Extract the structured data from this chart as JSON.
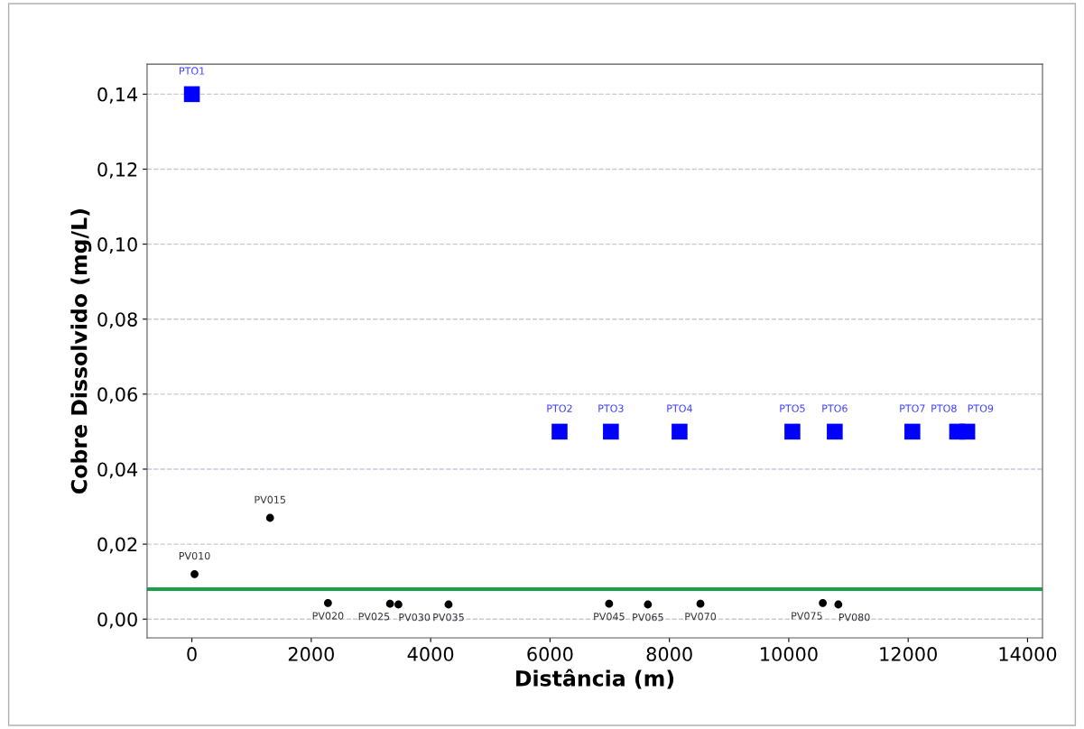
{
  "chart_data": {
    "type": "scatter",
    "xlabel": "Distância (m)",
    "ylabel": "Cobre Dissolvido (mg/L)",
    "xlim": [
      -750,
      14250
    ],
    "xticks": [
      0,
      2000,
      4000,
      6000,
      8000,
      10000,
      12000,
      14000
    ],
    "ylim": [
      -0.005,
      0.148
    ],
    "yticks": [
      {
        "value": 0,
        "label": "0,00"
      },
      {
        "value": 0.02,
        "label": "0,02"
      },
      {
        "value": 0.04,
        "label": "0,04"
      },
      {
        "value": 0.06,
        "label": "0,06"
      },
      {
        "value": 0.08,
        "label": "0,08"
      },
      {
        "value": 0.1,
        "label": "0,10"
      },
      {
        "value": 0.12,
        "label": "0,12"
      },
      {
        "value": 0.14,
        "label": "0,14"
      }
    ],
    "grid": "y",
    "series": [
      {
        "color": "#0000ff",
        "marker": "square",
        "x": [
          0,
          6160,
          7020,
          8170,
          10060,
          10770,
          12070,
          12820,
          12990
        ],
        "values": [
          0.14,
          0.05,
          0.05,
          0.05,
          0.05,
          0.05,
          0.05,
          0.05,
          0.05
        ]
      },
      {
        "color": "#000000",
        "marker": "circle",
        "x": [
          45,
          1310,
          2280,
          3320,
          3460,
          4300,
          6990,
          7640,
          8520,
          10570,
          10830
        ],
        "values": [
          0.012,
          0.027,
          0.0043,
          0.0041,
          0.0039,
          0.0039,
          0.0041,
          0.0039,
          0.0041,
          0.0043,
          0.0039
        ]
      }
    ],
    "ref_lines": [
      {
        "axis": "y",
        "value": 0.008,
        "color": "#1aa04a",
        "line_style": "solid"
      }
    ],
    "annotations": [
      {
        "text": "PTO1",
        "x": 0,
        "y": 0.14
      },
      {
        "text": "PTO2",
        "x": 6160,
        "y": 0.05
      },
      {
        "text": "PTO3",
        "x": 7020,
        "y": 0.05
      },
      {
        "text": "PTO4",
        "x": 8170,
        "y": 0.05
      },
      {
        "text": "PTO5",
        "x": 10060,
        "y": 0.05
      },
      {
        "text": "PTO6",
        "x": 10770,
        "y": 0.05
      },
      {
        "text": "PTO7",
        "x": 12070,
        "y": 0.05
      },
      {
        "text": "PTO8",
        "x": 12820,
        "y": 0.05
      },
      {
        "text": "PTO9",
        "x": 12990,
        "y": 0.05
      },
      {
        "text": "PV010",
        "x": 45,
        "y": 0.012
      },
      {
        "text": "PV015",
        "x": 1310,
        "y": 0.027
      },
      {
        "text": "PV020",
        "x": 2280,
        "y": 0.0043
      },
      {
        "text": "PV025",
        "x": 3320,
        "y": 0.0041
      },
      {
        "text": "PV030",
        "x": 3460,
        "y": 0.0039
      },
      {
        "text": "PV035",
        "x": 4300,
        "y": 0.0039
      },
      {
        "text": "PV045",
        "x": 6990,
        "y": 0.0041
      },
      {
        "text": "PV065",
        "x": 7640,
        "y": 0.0039
      },
      {
        "text": "PV070",
        "x": 8520,
        "y": 0.0041
      },
      {
        "text": "PV075",
        "x": 10570,
        "y": 0.0043
      },
      {
        "text": "PV080",
        "x": 10830,
        "y": 0.0039
      }
    ]
  }
}
